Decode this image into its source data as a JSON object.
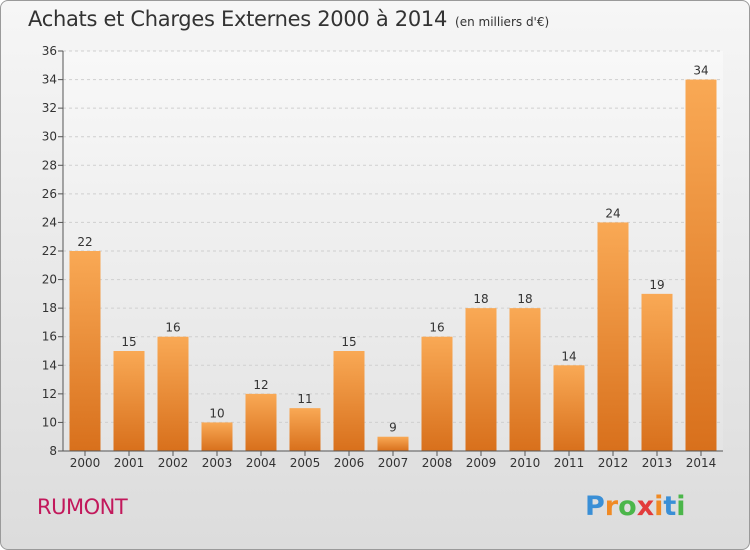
{
  "title": "Achats et Charges Externes 2000 à 2014",
  "subtitle": "(en milliers d'€)",
  "commune": "RUMONT",
  "logo": {
    "letters": [
      "P",
      "r",
      "o",
      "x",
      "i",
      "t",
      "i"
    ],
    "colors": [
      "#3a8fd6",
      "#f08a24",
      "#4bb64a",
      "#e23b3b",
      "#f08a24",
      "#3a8fd6",
      "#4bb64a"
    ]
  },
  "chart_data": {
    "type": "bar",
    "categories": [
      "2000",
      "2001",
      "2002",
      "2003",
      "2004",
      "2005",
      "2006",
      "2007",
      "2008",
      "2009",
      "2010",
      "2011",
      "2012",
      "2013",
      "2014"
    ],
    "values": [
      22,
      15,
      16,
      10,
      12,
      11,
      15,
      9,
      16,
      18,
      18,
      14,
      24,
      19,
      34
    ],
    "ylim": [
      8,
      36
    ],
    "yticks": [
      8,
      10,
      12,
      14,
      16,
      18,
      20,
      22,
      24,
      26,
      28,
      30,
      32,
      34,
      36
    ],
    "grid": true,
    "bar_color_light": "#f9a955",
    "bar_color_dark": "#d8701c"
  }
}
